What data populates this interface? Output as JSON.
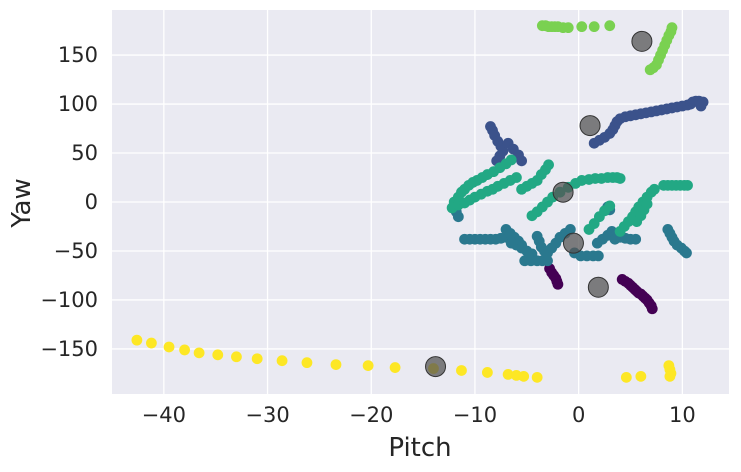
{
  "chart_data": {
    "type": "scatter",
    "title": "",
    "xlabel": "Pitch",
    "ylabel": "Yaw",
    "xlim": [
      -45,
      14.5
    ],
    "ylim": [
      -196,
      196
    ],
    "xticks": [
      -40,
      -30,
      -20,
      -10,
      0,
      10
    ],
    "yticks": [
      -150,
      -100,
      -50,
      0,
      50,
      100,
      150
    ],
    "grid": true,
    "legend": "none",
    "colors": {
      "background": "#EAEAF2",
      "grid": "#FFFFFF",
      "text": "#262626",
      "centroid": "#555555"
    },
    "series": [
      {
        "color": "#440154",
        "points": [
          [
            -2.8,
            -68
          ],
          [
            -2.6,
            -72
          ],
          [
            -2.4,
            -75
          ],
          [
            -2.2,
            -78
          ],
          [
            -2.1,
            -81
          ],
          [
            -2.0,
            -84
          ],
          [
            4.2,
            -79
          ],
          [
            4.5,
            -81
          ],
          [
            4.8,
            -83
          ],
          [
            5.0,
            -85
          ],
          [
            5.2,
            -87
          ],
          [
            5.4,
            -89
          ],
          [
            5.6,
            -91
          ],
          [
            5.8,
            -93
          ],
          [
            6.0,
            -94
          ],
          [
            6.2,
            -96
          ],
          [
            6.4,
            -98
          ],
          [
            6.6,
            -100
          ],
          [
            6.8,
            -103
          ],
          [
            7.0,
            -106
          ],
          [
            7.1,
            -109
          ]
        ]
      },
      {
        "color": "#3B528B",
        "points": [
          [
            -8.5,
            77
          ],
          [
            -8.3,
            73
          ],
          [
            -8.1,
            68
          ],
          [
            -7.8,
            62
          ],
          [
            -7.5,
            57
          ],
          [
            -7.3,
            52
          ],
          [
            -7.6,
            47
          ],
          [
            -7.9,
            42
          ],
          [
            -6.8,
            60
          ],
          [
            -6.3,
            54
          ],
          [
            -5.8,
            48
          ],
          [
            -5.5,
            42
          ],
          [
            1.5,
            60
          ],
          [
            2.0,
            63
          ],
          [
            2.5,
            66
          ],
          [
            3.0,
            70
          ],
          [
            3.3,
            74
          ],
          [
            3.5,
            78
          ],
          [
            3.7,
            82
          ],
          [
            4.0,
            85
          ],
          [
            4.5,
            87
          ],
          [
            5.0,
            88
          ],
          [
            5.5,
            89
          ],
          [
            6.0,
            90
          ],
          [
            6.5,
            91
          ],
          [
            7.0,
            92
          ],
          [
            7.5,
            93
          ],
          [
            8.0,
            94
          ],
          [
            8.5,
            95
          ],
          [
            9.0,
            96
          ],
          [
            9.5,
            97
          ],
          [
            10.0,
            98
          ],
          [
            10.5,
            99
          ],
          [
            10.8,
            100
          ],
          [
            11.0,
            102
          ],
          [
            11.3,
            103
          ],
          [
            11.6,
            103
          ],
          [
            12.0,
            102
          ],
          [
            11.8,
            98
          ]
        ]
      },
      {
        "color": "#2A788E",
        "points": [
          [
            -11.8,
            -10
          ],
          [
            -11.6,
            -15
          ],
          [
            -11.0,
            -38
          ],
          [
            -10.5,
            -38
          ],
          [
            -10.0,
            -38
          ],
          [
            -9.5,
            -38
          ],
          [
            -9.0,
            -38
          ],
          [
            -8.5,
            -38
          ],
          [
            -8.0,
            -38
          ],
          [
            -7.5,
            -37
          ],
          [
            -7.0,
            -36
          ],
          [
            -7.0,
            -28
          ],
          [
            -6.6,
            -32
          ],
          [
            -6.2,
            -36
          ],
          [
            -5.8,
            -40
          ],
          [
            -5.5,
            -44
          ],
          [
            -6.5,
            -42
          ],
          [
            -6.0,
            -44
          ],
          [
            -5.5,
            -47
          ],
          [
            -5.0,
            -50
          ],
          [
            -4.5,
            -53
          ],
          [
            -4.8,
            -57
          ],
          [
            -5.2,
            -60
          ],
          [
            -4.6,
            -60
          ],
          [
            -4.0,
            -60
          ],
          [
            -3.5,
            -60
          ],
          [
            -3.0,
            -60
          ],
          [
            -4.0,
            -35
          ],
          [
            -3.8,
            -40
          ],
          [
            -3.6,
            -46
          ],
          [
            -3.3,
            -50
          ],
          [
            -3.0,
            -52
          ],
          [
            -2.6,
            -47
          ],
          [
            -2.2,
            -42
          ],
          [
            -1.8,
            -36
          ],
          [
            -1.3,
            -32
          ],
          [
            -0.8,
            -28
          ],
          [
            -0.4,
            -52
          ],
          [
            0.2,
            -55
          ],
          [
            0.8,
            -55
          ],
          [
            1.4,
            -55
          ],
          [
            1.9,
            -55
          ],
          [
            1.8,
            -42
          ],
          [
            2.3,
            -38
          ],
          [
            2.8,
            -34
          ],
          [
            3.2,
            -30
          ],
          [
            3.6,
            -34
          ],
          [
            3.5,
            -38
          ],
          [
            4.0,
            -36
          ],
          [
            4.5,
            -37
          ],
          [
            5.0,
            -38
          ],
          [
            5.5,
            -38
          ],
          [
            2.8,
            -5
          ],
          [
            3.0,
            -8
          ],
          [
            8.6,
            -28
          ],
          [
            8.8,
            -32
          ],
          [
            9.0,
            -36
          ],
          [
            9.2,
            -40
          ],
          [
            9.5,
            -44
          ],
          [
            9.9,
            -47
          ],
          [
            10.2,
            -50
          ],
          [
            10.4,
            -52
          ]
        ]
      },
      {
        "color": "#22A884",
        "points": [
          [
            -12.0,
            0
          ],
          [
            -11.6,
            5
          ],
          [
            -11.3,
            10
          ],
          [
            -11.0,
            13
          ],
          [
            -10.6,
            17
          ],
          [
            -10.2,
            20
          ],
          [
            -9.8,
            22
          ],
          [
            -9.3,
            25
          ],
          [
            -8.8,
            28
          ],
          [
            -8.2,
            31
          ],
          [
            -7.6,
            35
          ],
          [
            -7.0,
            39
          ],
          [
            -6.5,
            43
          ],
          [
            -12.2,
            -6
          ],
          [
            -11.6,
            -3
          ],
          [
            -11.0,
            -1
          ],
          [
            -10.5,
            2
          ],
          [
            -10.0,
            5
          ],
          [
            -9.4,
            8
          ],
          [
            -8.8,
            11
          ],
          [
            -8.3,
            13
          ],
          [
            -7.8,
            16
          ],
          [
            -7.2,
            19
          ],
          [
            -6.6,
            22
          ],
          [
            -6.0,
            25
          ],
          [
            -5.5,
            13
          ],
          [
            -5.0,
            16
          ],
          [
            -4.5,
            19
          ],
          [
            -4.0,
            22
          ],
          [
            -3.6,
            28
          ],
          [
            -3.2,
            33
          ],
          [
            -2.9,
            38
          ],
          [
            -4.5,
            -14
          ],
          [
            -4.0,
            -10
          ],
          [
            -3.5,
            -5
          ],
          [
            -3.0,
            0
          ],
          [
            -2.5,
            5
          ],
          [
            -1.8,
            10
          ],
          [
            -1.0,
            15
          ],
          [
            -0.3,
            19
          ],
          [
            0.3,
            22
          ],
          [
            1.0,
            23
          ],
          [
            1.6,
            24
          ],
          [
            2.2,
            24
          ],
          [
            2.8,
            25
          ],
          [
            3.3,
            25
          ],
          [
            3.7,
            25
          ],
          [
            4.0,
            24
          ],
          [
            1.0,
            -28
          ],
          [
            1.5,
            -22
          ],
          [
            2.0,
            -15
          ],
          [
            2.5,
            -9
          ],
          [
            3.0,
            -4
          ],
          [
            4.0,
            -30
          ],
          [
            4.4,
            -25
          ],
          [
            4.8,
            -20
          ],
          [
            5.2,
            -15
          ],
          [
            5.5,
            -10
          ],
          [
            5.8,
            -5
          ],
          [
            6.2,
            0
          ],
          [
            6.6,
            5
          ],
          [
            7.0,
            10
          ],
          [
            7.3,
            13
          ],
          [
            5.6,
            -20
          ],
          [
            6.0,
            -14
          ],
          [
            6.3,
            -8
          ],
          [
            6.6,
            -2
          ],
          [
            8.2,
            17
          ],
          [
            8.6,
            17
          ],
          [
            9.0,
            17
          ],
          [
            9.4,
            17
          ],
          [
            9.8,
            17
          ],
          [
            10.2,
            17
          ],
          [
            10.5,
            17
          ]
        ]
      },
      {
        "color": "#7AD151",
        "points": [
          [
            -3.5,
            180
          ],
          [
            -3.2,
            180
          ],
          [
            -2.9,
            179
          ],
          [
            -2.6,
            179
          ],
          [
            -2.3,
            179
          ],
          [
            -2.0,
            179
          ],
          [
            -1.5,
            178
          ],
          [
            -1.0,
            178
          ],
          [
            0.3,
            179
          ],
          [
            1.5,
            179
          ],
          [
            3.0,
            180
          ],
          [
            6.9,
            135
          ],
          [
            7.2,
            137
          ],
          [
            7.5,
            140
          ],
          [
            7.7,
            145
          ],
          [
            7.9,
            150
          ],
          [
            8.1,
            155
          ],
          [
            8.3,
            160
          ],
          [
            8.5,
            165
          ],
          [
            8.7,
            170
          ],
          [
            8.9,
            174
          ],
          [
            9.0,
            178
          ]
        ]
      },
      {
        "color": "#FDE725",
        "points": [
          [
            -42.6,
            -141
          ],
          [
            -41.2,
            -144
          ],
          [
            -39.5,
            -148
          ],
          [
            -38.0,
            -151
          ],
          [
            -36.6,
            -154
          ],
          [
            -34.8,
            -156
          ],
          [
            -33.0,
            -158
          ],
          [
            -31.0,
            -160
          ],
          [
            -28.6,
            -162
          ],
          [
            -26.2,
            -164
          ],
          [
            -23.4,
            -166
          ],
          [
            -20.3,
            -167
          ],
          [
            -17.7,
            -169
          ],
          [
            -14.0,
            -170
          ],
          [
            -11.3,
            -172
          ],
          [
            -8.8,
            -174
          ],
          [
            -6.8,
            -176
          ],
          [
            -6.0,
            -177
          ],
          [
            -5.3,
            -178
          ],
          [
            -4.0,
            -179
          ],
          [
            4.6,
            -179
          ],
          [
            6.0,
            -178
          ],
          [
            8.7,
            -167
          ],
          [
            8.8,
            -171
          ],
          [
            8.9,
            -175
          ],
          [
            8.8,
            -178
          ]
        ]
      }
    ],
    "centroids": [
      [
        -13.8,
        -168
      ],
      [
        -1.5,
        10
      ],
      [
        -0.5,
        -42
      ],
      [
        1.1,
        78
      ],
      [
        1.9,
        -87
      ],
      [
        6.1,
        164
      ]
    ]
  }
}
